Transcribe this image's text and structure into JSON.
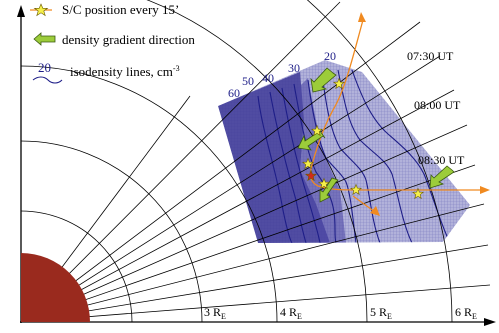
{
  "legend": {
    "items": [
      {
        "icon": "star-icon",
        "label": "S/C position every 15’"
      },
      {
        "icon": "gradient-arrow-icon",
        "label": "density gradient direction"
      },
      {
        "icon": "isodensity-line-icon",
        "sample_value": "20",
        "label": "isodensity lines, cm",
        "label_exponent": "-3"
      }
    ]
  },
  "time_labels": [
    "07:30 UT",
    "08:00 UT",
    "08:30 UT"
  ],
  "radial_labels": [
    {
      "value": "3 R",
      "sub": "E"
    },
    {
      "value": "4 R",
      "sub": "E"
    },
    {
      "value": "5 R",
      "sub": "E"
    },
    {
      "value": "6 R",
      "sub": "E"
    }
  ],
  "contour_labels": [
    "60",
    "50",
    "40",
    "30",
    "20"
  ],
  "colors": {
    "earth": "#9a2a1e",
    "density_region": "#2a2a8a",
    "gradient_arrow": "#9ccc3a",
    "trajectory": "#f08a20",
    "star": "#f5ef4a",
    "star_highlight": "#d12a1a"
  }
}
